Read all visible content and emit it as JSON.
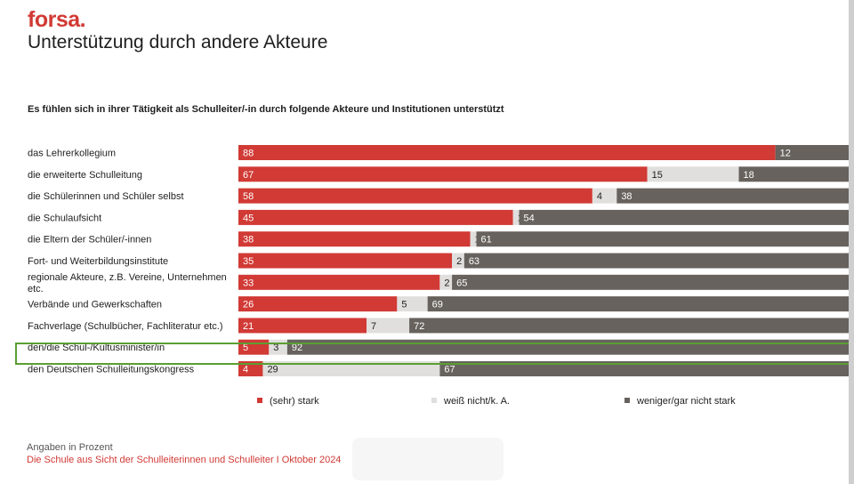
{
  "brand": "forsa.",
  "title": "Unterstützung durch andere Akteure",
  "subtitle": "Es fühlen sich in ihrer Tätigkeit als Schulleiter/-in durch folgende Akteure und Institutionen unterstützt",
  "footer_note": "Angaben in Prozent",
  "footer_source": "Die Schule aus Sicht der Schulleiterinnen und Schulleiter I Oktober 2024",
  "colors": {
    "strong": "#d13a35",
    "unknown": "#e0dfdd",
    "weak": "#67625d",
    "highlight": "#5b9e33"
  },
  "chart_data": {
    "type": "bar",
    "orientation": "horizontal",
    "stacked": true,
    "xlim": [
      0,
      100
    ],
    "categories": [
      [
        "das Lehrerkollegium"
      ],
      [
        "die erweiterte Schulleitung"
      ],
      [
        "die Schülerinnen und Schüler selbst"
      ],
      [
        "die Schulaufsicht"
      ],
      [
        "die Eltern der Schüler/-innen"
      ],
      [
        "Fort- und Weiterbildungsinstitute"
      ],
      [
        "regionale Akteure, z.B. Vereine, Unternehmen",
        "etc."
      ],
      [
        "Verbände und Gewerkschaften"
      ],
      [
        "Fachverlage (Schulbücher, Fachliteratur etc.)"
      ],
      [
        "den/die Schul-/Kultusminister/in"
      ],
      [
        "den Deutschen Schulleitungskongress"
      ]
    ],
    "series": [
      {
        "name": "(sehr) stark",
        "color": "#d13a35",
        "values": [
          88,
          67,
          58,
          45,
          38,
          35,
          33,
          26,
          21,
          5,
          4
        ]
      },
      {
        "name": "weiß nicht/k. A.",
        "color": "#e0dfdd",
        "values": [
          0,
          15,
          4,
          1,
          1,
          2,
          2,
          5,
          7,
          3,
          29
        ]
      },
      {
        "name": "weniger/gar nicht stark",
        "color": "#67625d",
        "values": [
          12,
          18,
          38,
          54,
          61,
          63,
          65,
          69,
          72,
          92,
          67
        ]
      }
    ],
    "highlighted_category": "den/die Schul-/Kultusminister/in",
    "legend_position": "bottom"
  }
}
